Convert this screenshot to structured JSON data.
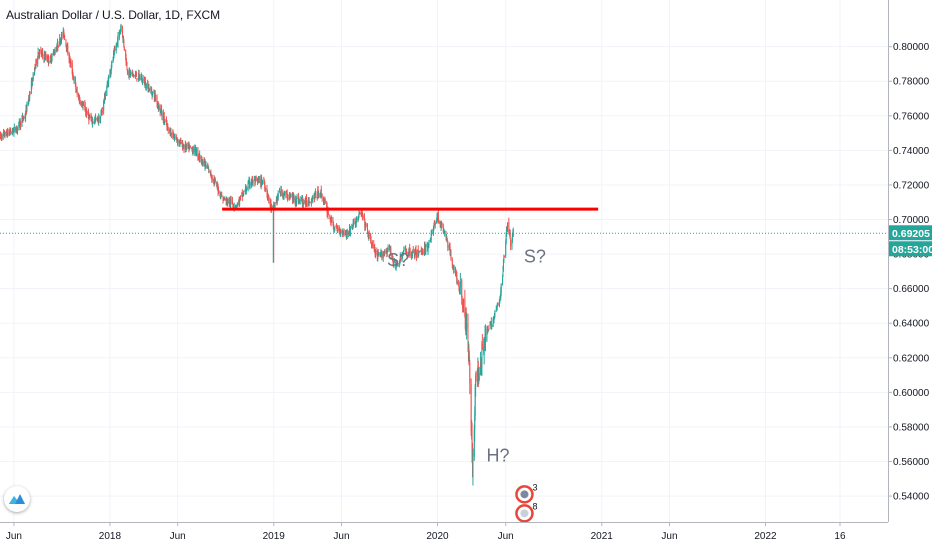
{
  "symbol_title": "Australian Dollar / U.S. Dollar, 1D, FXCM",
  "colors": {
    "up": "#26a69a",
    "down": "#ef5350",
    "resistance": "#ff0000",
    "price_line": "#26a69a",
    "label_bg": "#26a69a",
    "annotation": "#6b7280",
    "grid": "#f0f3fa",
    "axis_text": "#131722"
  },
  "chart_data": {
    "type": "candlestick",
    "title": "Australian Dollar / U.S. Dollar, 1D, FXCM",
    "ylim": [
      0.525,
      0.827
    ],
    "y_ticks": [
      "0.80000",
      "0.78000",
      "0.76000",
      "0.74000",
      "0.72000",
      "0.70000",
      "0.68000",
      "0.66000",
      "0.64000",
      "0.62000",
      "0.60000",
      "0.58000",
      "0.56000",
      "0.54000"
    ],
    "xlim": [
      "2017-05-01",
      "2022-10-01"
    ],
    "x_ticks": [
      {
        "label": "Jun",
        "date": "2017-06-01"
      },
      {
        "label": "2018",
        "date": "2018-01-01"
      },
      {
        "label": "Jun",
        "date": "2018-06-01"
      },
      {
        "label": "2019",
        "date": "2019-01-01"
      },
      {
        "label": "Jun",
        "date": "2019-06-01"
      },
      {
        "label": "2020",
        "date": "2020-01-01"
      },
      {
        "label": "Jun",
        "date": "2020-06-01"
      },
      {
        "label": "2021",
        "date": "2021-01-01"
      },
      {
        "label": "Jun",
        "date": "2021-06-01"
      },
      {
        "label": "2022",
        "date": "2022-01-01"
      },
      {
        "label": "16",
        "date": "2022-06-16"
      }
    ],
    "price_path": [
      [
        "2017-05-01",
        0.748
      ],
      [
        "2017-06-05",
        0.752
      ],
      [
        "2017-06-26",
        0.76
      ],
      [
        "2017-07-25",
        0.797
      ],
      [
        "2017-08-20",
        0.792
      ],
      [
        "2017-09-20",
        0.808
      ],
      [
        "2017-10-20",
        0.772
      ],
      [
        "2017-11-20",
        0.757
      ],
      [
        "2017-12-10",
        0.758
      ],
      [
        "2018-01-05",
        0.79
      ],
      [
        "2018-01-26",
        0.812
      ],
      [
        "2018-02-10",
        0.785
      ],
      [
        "2018-03-10",
        0.782
      ],
      [
        "2018-04-10",
        0.772
      ],
      [
        "2018-05-10",
        0.752
      ],
      [
        "2018-06-15",
        0.742
      ],
      [
        "2018-07-10",
        0.74
      ],
      [
        "2018-08-10",
        0.728
      ],
      [
        "2018-09-10",
        0.712
      ],
      [
        "2018-10-10",
        0.708
      ],
      [
        "2018-11-10",
        0.722
      ],
      [
        "2018-12-10",
        0.722
      ],
      [
        "2018-12-28",
        0.705
      ],
      [
        "2019-01-15",
        0.716
      ],
      [
        "2019-02-15",
        0.712
      ],
      [
        "2019-03-15",
        0.71
      ],
      [
        "2019-04-15",
        0.716
      ],
      [
        "2019-05-15",
        0.695
      ],
      [
        "2019-06-15",
        0.692
      ],
      [
        "2019-07-15",
        0.704
      ],
      [
        "2019-08-01",
        0.69
      ],
      [
        "2019-08-20",
        0.678
      ],
      [
        "2019-09-15",
        0.683
      ],
      [
        "2019-10-01",
        0.672
      ],
      [
        "2019-10-20",
        0.682
      ],
      [
        "2019-11-15",
        0.68
      ],
      [
        "2019-12-10",
        0.684
      ],
      [
        "2019-12-31",
        0.702
      ],
      [
        "2020-01-20",
        0.69
      ],
      [
        "2020-02-10",
        0.668
      ],
      [
        "2020-02-28",
        0.652
      ],
      [
        "2020-03-12",
        0.62
      ],
      [
        "2020-03-19",
        0.555
      ],
      [
        "2020-03-26",
        0.605
      ],
      [
        "2020-04-15",
        0.632
      ],
      [
        "2020-05-01",
        0.64
      ],
      [
        "2020-05-20",
        0.655
      ],
      [
        "2020-06-05",
        0.7
      ],
      [
        "2020-06-12",
        0.686
      ],
      [
        "2020-06-18",
        0.692
      ]
    ],
    "lowest_wick": {
      "date": "2020-03-19",
      "value": 0.551
    },
    "resistance_line": {
      "value": 0.706,
      "from": "2018-09-08",
      "to": "2020-12-24"
    },
    "current_price": {
      "value": 0.69205,
      "label": "0.69205",
      "countdown": "08:53:00"
    },
    "annotations": [
      {
        "text": "S?",
        "date": "2019-10-05",
        "value": 0.673
      },
      {
        "text": "H?",
        "date": "2020-05-15",
        "value": 0.56
      },
      {
        "text": "S?",
        "date": "2020-08-05",
        "value": 0.675
      }
    ],
    "event_badges": [
      {
        "count": "3",
        "date": "2020-06-25",
        "value": 0.541
      },
      {
        "count": "8",
        "date": "2020-06-25",
        "value": 0.53
      }
    ]
  }
}
